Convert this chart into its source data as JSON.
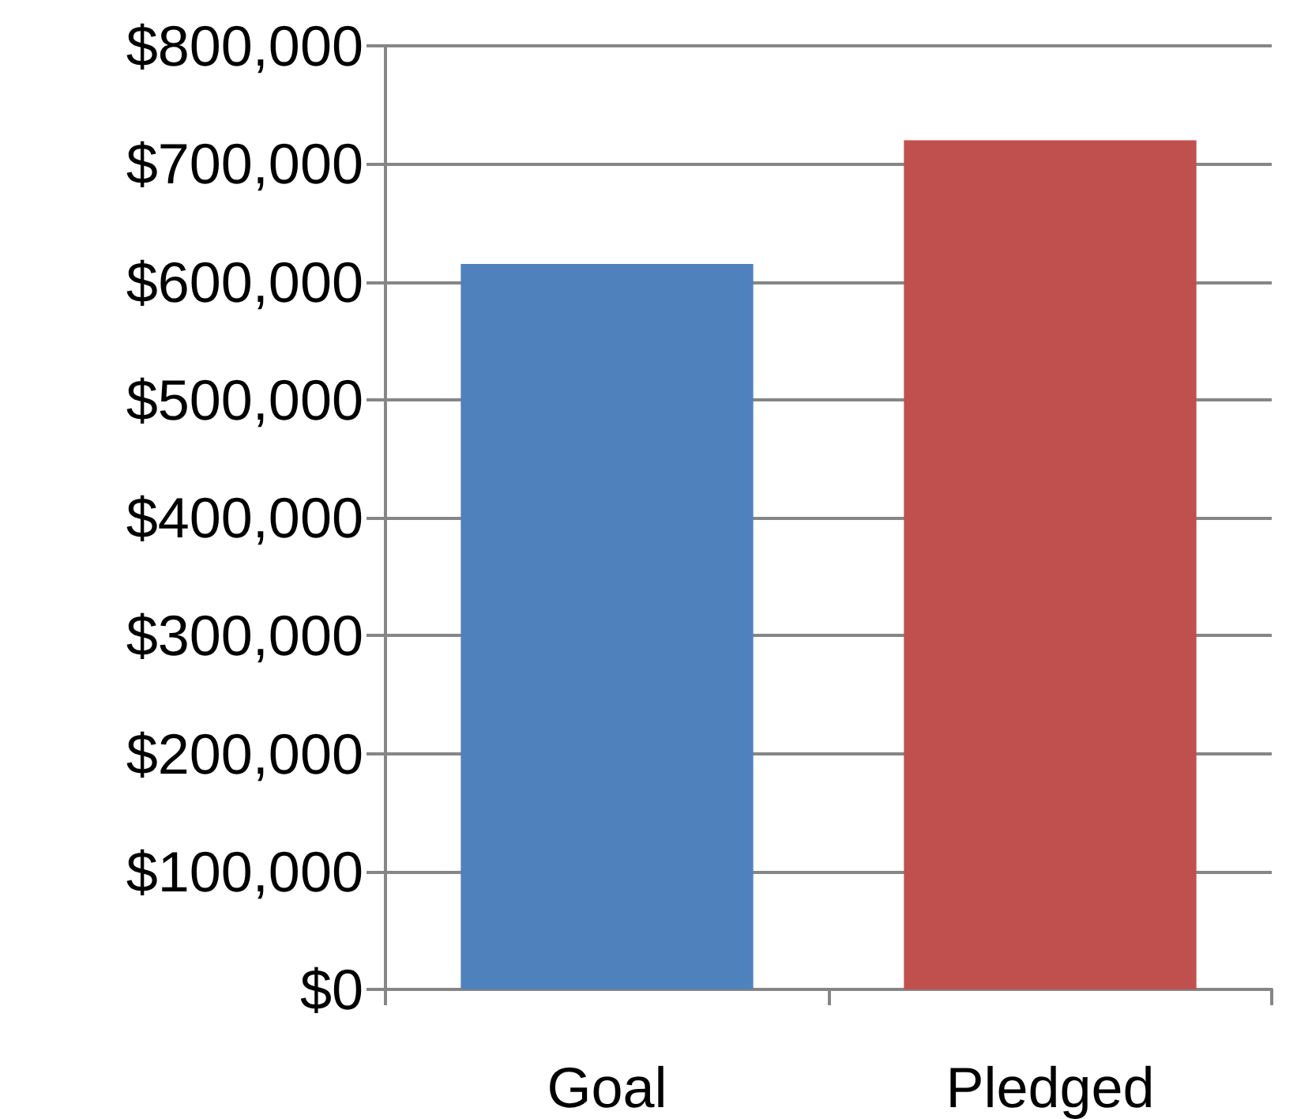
{
  "chart_data": {
    "type": "bar",
    "categories": [
      "Goal",
      "Pledged"
    ],
    "values": [
      615000,
      720000
    ],
    "colors": [
      "#4f81bd",
      "#c0504d"
    ],
    "ylim": [
      0,
      800000
    ],
    "yticks": [
      {
        "value": 0,
        "label": "$0"
      },
      {
        "value": 100000,
        "label": "$100,000"
      },
      {
        "value": 200000,
        "label": "$200,000"
      },
      {
        "value": 300000,
        "label": "$300,000"
      },
      {
        "value": 400000,
        "label": "$400,000"
      },
      {
        "value": 500000,
        "label": "$500,000"
      },
      {
        "value": 600000,
        "label": "$600,000"
      },
      {
        "value": 700000,
        "label": "$700,000"
      },
      {
        "value": 800000,
        "label": "$800,000"
      }
    ],
    "grid": "y"
  }
}
